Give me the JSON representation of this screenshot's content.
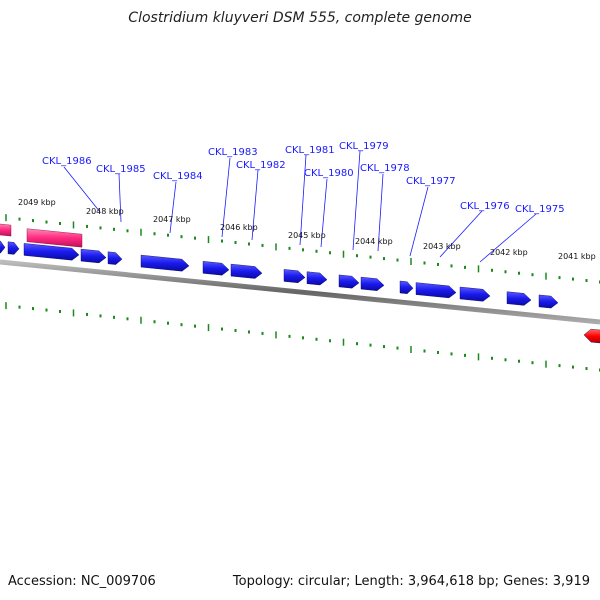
{
  "header": {
    "title": "Clostridium kluyveri DSM 555, complete genome"
  },
  "footer": {
    "accession": "Accession: NC_009706",
    "summary": "Topology: circular; Length: 3,964,618 bp; Genes: 3,919"
  },
  "map": {
    "colors": {
      "forward_gene": "#1a1aff",
      "rna_gene": "#ff2a7f",
      "reverse_gene": "#ff0000",
      "tick": "#1a8a1a",
      "backbone": "#7a7a7a"
    },
    "kbp_labels": [
      "2049 kbp",
      "2048 kbp",
      "2047 kbp",
      "2046 kbp",
      "2045 kbp",
      "2044 kbp",
      "2043 kbp",
      "2042 kbp",
      "2041 kbp"
    ],
    "gene_labels": [
      "CKL_1986",
      "CKL_1985",
      "CKL_1984",
      "CKL_1983",
      "CKL_1982",
      "CKL_1981",
      "CKL_1980",
      "CKL_1979",
      "CKL_1978",
      "CKL_1977",
      "CKL_1976",
      "CKL_1975"
    ]
  }
}
